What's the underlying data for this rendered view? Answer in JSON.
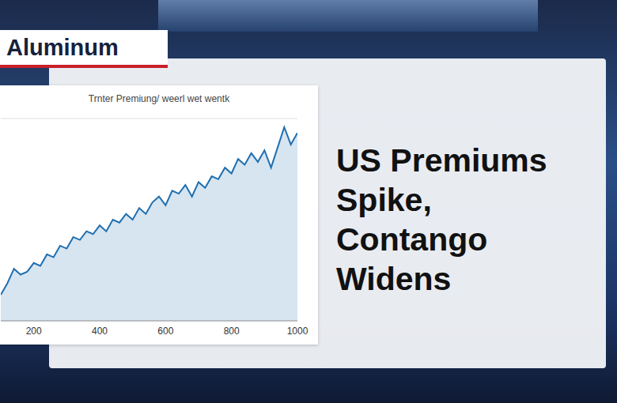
{
  "badge": "Aluminum",
  "headline": "US Premiums Spike, Contango Widens",
  "chart_data": {
    "type": "area",
    "title": "Trnter Premiung/ weerl wet wentk",
    "x": [
      100,
      120,
      140,
      160,
      180,
      200,
      220,
      240,
      260,
      280,
      300,
      320,
      340,
      360,
      380,
      400,
      420,
      440,
      460,
      480,
      500,
      520,
      540,
      560,
      580,
      600,
      620,
      640,
      660,
      680,
      700,
      720,
      740,
      760,
      780,
      800,
      820,
      840,
      860,
      880,
      900,
      920,
      940,
      960,
      980,
      1000
    ],
    "values": [
      0.9,
      1.3,
      1.8,
      1.6,
      1.7,
      2.0,
      1.9,
      2.3,
      2.2,
      2.6,
      2.5,
      2.9,
      2.8,
      3.1,
      3.0,
      3.3,
      3.1,
      3.5,
      3.4,
      3.7,
      3.5,
      3.9,
      3.7,
      4.1,
      4.3,
      4.0,
      4.5,
      4.4,
      4.7,
      4.3,
      4.8,
      4.6,
      5.0,
      4.9,
      5.3,
      5.1,
      5.6,
      5.4,
      5.8,
      5.5,
      5.9,
      5.3,
      6.0,
      6.7,
      6.1,
      6.5
    ],
    "color": "#1f6fb0",
    "xlim": [
      100,
      1000
    ],
    "xticks": [
      200,
      400,
      600,
      800,
      1000
    ],
    "ylim": [
      0,
      7
    ],
    "yticks": [
      0,
      1,
      2,
      3,
      4,
      5,
      6,
      7
    ],
    "grid": true,
    "tick_labels": "x"
  }
}
